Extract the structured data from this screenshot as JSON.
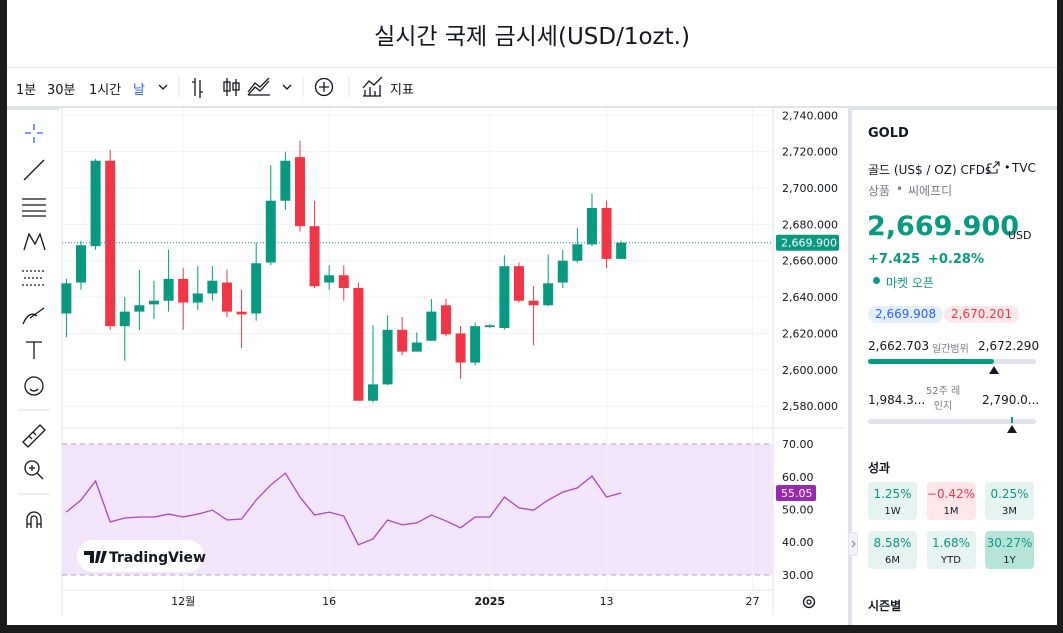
{
  "header": {
    "title": "실시간 국제 금시세(USD/1ozt.)"
  },
  "toolbar": {
    "intervals": [
      "1분",
      "30분",
      "1시간",
      "날"
    ],
    "indicators": "지표"
  },
  "watermark": "TradingView",
  "chart_data": [
    {
      "type": "candlestick",
      "xlim": [
        -0.3,
        48.4
      ],
      "xticks": [
        {
          "value": 8,
          "label": "12월"
        },
        {
          "value": 18,
          "label": "16"
        },
        {
          "value": 29,
          "label": "2025"
        },
        {
          "value": 37,
          "label": "13"
        },
        {
          "value": 47,
          "label": "27"
        }
      ],
      "ylim": [
        2568,
        2744
      ],
      "yticks": [
        {
          "value": 2580,
          "label": "2,580.000"
        },
        {
          "value": 2600,
          "label": "2,600.000"
        },
        {
          "value": 2620,
          "label": "2,620.000"
        },
        {
          "value": 2640,
          "label": "2,640.000"
        },
        {
          "value": 2660,
          "label": "2,660.000"
        },
        {
          "value": 2680,
          "label": "2,680.000"
        },
        {
          "value": 2700,
          "label": "2,700.000"
        },
        {
          "value": 2720,
          "label": "2,720.000"
        },
        {
          "value": 2740,
          "label": "2,740.000"
        }
      ],
      "grid": true,
      "up_color": "#089981",
      "down_color": "#f23645",
      "last_label": "2,669.900",
      "open": [
        2631,
        2648,
        2668,
        2715,
        2624,
        2632,
        2636,
        2638,
        2650,
        2637,
        2642,
        2648,
        2632,
        2631,
        2659,
        2693,
        2717,
        2679,
        2648,
        2652,
        2645,
        2583,
        2592,
        2622,
        2610,
        2616,
        2635.5,
        2620,
        2604,
        2623.5,
        2623,
        2657,
        2638,
        2635.5,
        2648,
        2660,
        2669,
        2689,
        2661
      ],
      "high": [
        2650,
        2671,
        2716,
        2721,
        2640,
        2655,
        2649,
        2666,
        2656,
        2657,
        2657,
        2655,
        2644,
        2670,
        2712.5,
        2720,
        2726,
        2693,
        2657.5,
        2657.5,
        2648,
        2624.5,
        2630,
        2629,
        2620.5,
        2639,
        2639,
        2624,
        2626,
        2625,
        2663,
        2659,
        2646,
        2663.5,
        2666,
        2678,
        2697,
        2693,
        2671
      ],
      "low": [
        2618,
        2644,
        2666,
        2622,
        2605,
        2622,
        2628,
        2632,
        2622,
        2633,
        2638,
        2629,
        2612,
        2627,
        2657.5,
        2688,
        2676,
        2645,
        2644,
        2638,
        2583,
        2582,
        2591.5,
        2608,
        2611,
        2616,
        2618.5,
        2595,
        2602.5,
        2623,
        2622,
        2637,
        2613.5,
        2635,
        2645,
        2659,
        2668,
        2656,
        2661
      ],
      "close": [
        2647.6,
        2668.5,
        2715,
        2624,
        2632,
        2635.5,
        2638,
        2650,
        2637,
        2642,
        2649,
        2632,
        2630.5,
        2658.6,
        2693,
        2715,
        2679,
        2646,
        2652,
        2645,
        2583,
        2592,
        2622,
        2610,
        2615,
        2632,
        2619.5,
        2604,
        2624,
        2624.5,
        2657,
        2638,
        2635.5,
        2647.6,
        2660,
        2669,
        2689,
        2661,
        2669.9
      ]
    },
    {
      "type": "line",
      "ylim": [
        25.4,
        74.9
      ],
      "yticks": [
        {
          "value": 30,
          "label": "30.00"
        },
        {
          "value": 40,
          "label": "40.00"
        },
        {
          "value": 50,
          "label": "50.00"
        },
        {
          "value": 60,
          "label": "60.00"
        },
        {
          "value": 70,
          "label": "70.00"
        }
      ],
      "upper_band": 70,
      "lower_band": 30,
      "band_color": "#f3e5fc",
      "color": "#ab47bc",
      "last_label": "55.05",
      "values": [
        49.2,
        52.9,
        58.7,
        46.2,
        47.4,
        47.7,
        47.7,
        48.6,
        47.7,
        48.6,
        49.8,
        46.8,
        47.1,
        52.9,
        57.5,
        61.1,
        53.8,
        48.3,
        49.2,
        48.0,
        39.2,
        41.0,
        46.8,
        45.3,
        45.9,
        48.3,
        46.5,
        44.4,
        47.7,
        47.7,
        53.8,
        50.5,
        49.8,
        52.9,
        55.3,
        56.6,
        60.2,
        53.8,
        55.05
      ]
    }
  ],
  "panel": {
    "symbol": "GOLD",
    "description": "골드 (US$ / OZ) CFDs",
    "exchange": "TVC",
    "tags": [
      "상품",
      "씨에프디"
    ],
    "price": "2,669.900",
    "currency": "USD",
    "change": "+7.425",
    "change_percent": "+0.28%",
    "status": "마켓 오픈",
    "bid": "2,669.908",
    "ask": "2,670.201",
    "day_low": "2,662.703",
    "day_range_label": "일간범위",
    "day_high": "2,672.290",
    "week52_low": "1,984.3...",
    "week52_label": "52주 레인지",
    "week52_high": "2,790.0...",
    "performance_title": "성과",
    "performance": [
      {
        "value": "1.25%",
        "period": "1W"
      },
      {
        "value": "−0.42%",
        "period": "1M"
      },
      {
        "value": "0.25%",
        "period": "3M"
      },
      {
        "value": "8.58%",
        "period": "6M"
      },
      {
        "value": "1.68%",
        "period": "YTD"
      },
      {
        "value": "30.27%",
        "period": "1Y"
      }
    ],
    "seasonal_title": "시즌별"
  }
}
